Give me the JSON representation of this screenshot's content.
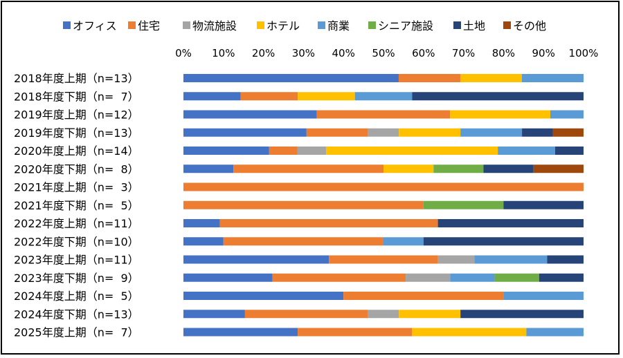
{
  "chart_data": {
    "type": "bar",
    "orientation": "horizontal",
    "stacked": "percent",
    "title": "",
    "xlabel": "",
    "ylabel": "",
    "xlim": [
      0,
      100
    ],
    "x_ticks": [
      "0%",
      "10%",
      "20%",
      "30%",
      "40%",
      "50%",
      "60%",
      "70%",
      "80%",
      "90%",
      "100%"
    ],
    "legend_position": "top",
    "grid": false,
    "categories": [
      "2018年度上期（n=13）",
      "2018年度下期（n=  7）",
      "2019年度上期（n=12）",
      "2019年度下期（n=13）",
      "2020年度上期（n=14）",
      "2020年度下期（n=  8）",
      "2021年度上期（n=  3）",
      "2021年度下期（n=  5）",
      "2022年度上期（n=11）",
      "2022年度下期（n=10）",
      "2023年度上期（n=11）",
      "2023年度下期（n=  9）",
      "2024年度上期（n=  5）",
      "2024年度下期（n=13）",
      "2025年度上期（n=  7）"
    ],
    "series": [
      {
        "name": "オフィス",
        "color": "#4472C4",
        "values": [
          53.8,
          14.3,
          33.3,
          30.8,
          21.4,
          12.5,
          0,
          0,
          9.1,
          10,
          36.4,
          22.2,
          40,
          15.4,
          28.6
        ]
      },
      {
        "name": "住宅",
        "color": "#ED7D31",
        "values": [
          15.4,
          14.3,
          33.3,
          15.4,
          7.1,
          37.5,
          100,
          60,
          54.5,
          40,
          27.3,
          33.3,
          40,
          30.8,
          28.6
        ]
      },
      {
        "name": "物流施設",
        "color": "#A5A5A5",
        "values": [
          0,
          0,
          0,
          7.7,
          7.1,
          0,
          0,
          0,
          0,
          0,
          9.1,
          11.1,
          0,
          7.7,
          0
        ]
      },
      {
        "name": "ホテル",
        "color": "#FFC000",
        "values": [
          15.4,
          14.3,
          25,
          15.4,
          42.9,
          12.5,
          0,
          0,
          0,
          0,
          0,
          0,
          0,
          15.4,
          28.6
        ]
      },
      {
        "name": "商業",
        "color": "#5B9BD5",
        "values": [
          15.4,
          14.3,
          8.3,
          15.4,
          14.3,
          0,
          0,
          0,
          0,
          10,
          18.2,
          11.1,
          20,
          0,
          14.3
        ]
      },
      {
        "name": "シニア施設",
        "color": "#70AD47",
        "values": [
          0,
          0,
          0,
          0,
          0,
          12.5,
          0,
          20,
          0,
          0,
          0,
          11.1,
          0,
          0,
          0
        ]
      },
      {
        "name": "土地",
        "color": "#264478",
        "values": [
          0,
          42.9,
          0,
          7.7,
          7.1,
          12.5,
          0,
          20,
          36.4,
          40,
          9.1,
          11.1,
          0,
          30.8,
          0
        ]
      },
      {
        "name": "その他",
        "color": "#9E480E",
        "values": [
          0,
          0,
          0,
          7.7,
          0,
          12.5,
          0,
          0,
          0,
          0,
          0,
          0,
          0,
          0,
          0
        ]
      }
    ]
  }
}
